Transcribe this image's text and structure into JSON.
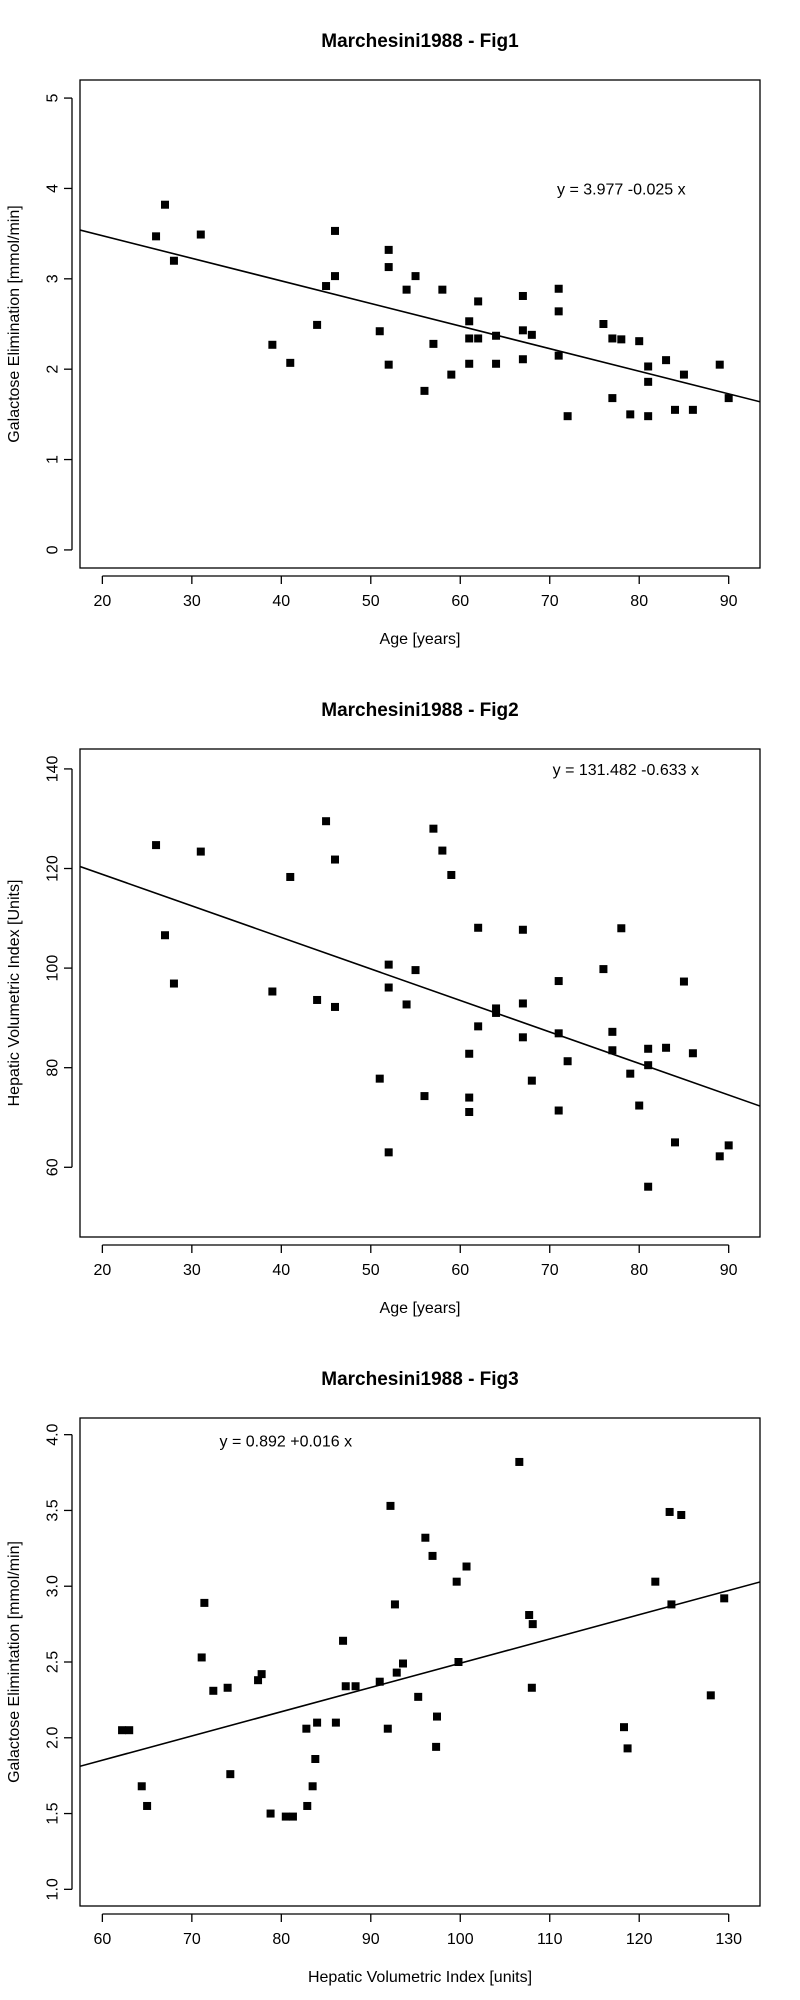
{
  "chart_data": [
    {
      "type": "scatter",
      "title": "Marchesini1988 - Fig1",
      "xlabel": "Age [years]",
      "ylabel": "Galactose Elimination [mmol/min]",
      "xlim": [
        17.5,
        93.5
      ],
      "ylim": [
        -0.2,
        5.2
      ],
      "xticks": [
        20,
        30,
        40,
        50,
        60,
        70,
        80,
        90
      ],
      "yticks": [
        0,
        1,
        2,
        3,
        4,
        5
      ],
      "fit": {
        "intercept": 3.977,
        "slope": -0.025,
        "label": "y = 3.977 -0.025 x"
      },
      "label_pos": [
        78,
        4.0
      ],
      "points": [
        [
          26,
          3.47
        ],
        [
          27,
          3.82
        ],
        [
          28,
          3.2
        ],
        [
          31,
          3.49
        ],
        [
          39,
          2.27
        ],
        [
          41,
          2.07
        ],
        [
          44,
          2.49
        ],
        [
          45,
          2.92
        ],
        [
          46,
          3.53
        ],
        [
          46,
          3.03
        ],
        [
          51,
          2.42
        ],
        [
          52,
          3.32
        ],
        [
          52,
          3.13
        ],
        [
          52,
          2.05
        ],
        [
          54,
          2.88
        ],
        [
          55,
          3.03
        ],
        [
          56,
          1.76
        ],
        [
          57,
          2.28
        ],
        [
          58,
          2.88
        ],
        [
          59,
          1.94
        ],
        [
          61,
          2.53
        ],
        [
          61,
          2.34
        ],
        [
          61,
          2.06
        ],
        [
          62,
          2.75
        ],
        [
          62,
          2.34
        ],
        [
          64,
          2.37
        ],
        [
          64,
          2.06
        ],
        [
          67,
          2.81
        ],
        [
          67,
          2.43
        ],
        [
          67,
          2.11
        ],
        [
          68,
          2.38
        ],
        [
          71,
          2.89
        ],
        [
          71,
          2.64
        ],
        [
          71,
          2.15
        ],
        [
          72,
          1.48
        ],
        [
          76,
          2.5
        ],
        [
          77,
          2.34
        ],
        [
          77,
          1.68
        ],
        [
          78,
          2.33
        ],
        [
          79,
          1.5
        ],
        [
          80,
          2.31
        ],
        [
          81,
          2.03
        ],
        [
          81,
          1.86
        ],
        [
          81,
          1.48
        ],
        [
          83,
          2.1
        ],
        [
          84,
          1.55
        ],
        [
          85,
          1.94
        ],
        [
          86,
          1.55
        ],
        [
          89,
          2.05
        ],
        [
          90,
          1.68
        ]
      ]
    },
    {
      "type": "scatter",
      "title": "Marchesini1988 - Fig2",
      "xlabel": "Age [years]",
      "ylabel": "Hepatic Volumetric Index [Units]",
      "xlim": [
        17.5,
        93.5
      ],
      "ylim": [
        46,
        144
      ],
      "xticks": [
        20,
        30,
        40,
        50,
        60,
        70,
        80,
        90
      ],
      "yticks": [
        60,
        80,
        100,
        120,
        140
      ],
      "fit": {
        "intercept": 131.482,
        "slope": -0.633,
        "label": "y = 131.482 -0.633 x"
      },
      "label_pos": [
        78.5,
        140
      ],
      "points": [
        [
          26,
          124.7
        ],
        [
          27,
          106.6
        ],
        [
          28,
          96.9
        ],
        [
          31,
          123.4
        ],
        [
          39,
          95.3
        ],
        [
          41,
          118.3
        ],
        [
          44,
          93.6
        ],
        [
          45,
          129.5
        ],
        [
          46,
          121.8
        ],
        [
          46,
          92.2
        ],
        [
          51,
          77.8
        ],
        [
          52,
          100.7
        ],
        [
          52,
          96.1
        ],
        [
          52,
          63.0
        ],
        [
          54,
          92.7
        ],
        [
          55,
          99.6
        ],
        [
          56,
          74.3
        ],
        [
          57,
          128.0
        ],
        [
          58,
          123.6
        ],
        [
          59,
          118.7
        ],
        [
          61,
          82.8
        ],
        [
          61,
          74.0
        ],
        [
          61,
          71.1
        ],
        [
          62,
          108.1
        ],
        [
          62,
          88.3
        ],
        [
          64,
          91.9
        ],
        [
          64,
          91.0
        ],
        [
          67,
          107.7
        ],
        [
          67,
          92.9
        ],
        [
          67,
          86.1
        ],
        [
          68,
          77.4
        ],
        [
          71,
          97.4
        ],
        [
          71,
          86.9
        ],
        [
          71,
          71.4
        ],
        [
          72,
          81.3
        ],
        [
          76,
          99.8
        ],
        [
          77,
          87.2
        ],
        [
          77,
          83.5
        ],
        [
          78,
          108.0
        ],
        [
          79,
          78.8
        ],
        [
          80,
          72.4
        ],
        [
          81,
          83.8
        ],
        [
          81,
          80.5
        ],
        [
          81,
          56.1
        ],
        [
          83,
          84.0
        ],
        [
          84,
          65.0
        ],
        [
          85,
          97.3
        ],
        [
          86,
          82.9
        ],
        [
          89,
          62.2
        ],
        [
          90,
          64.4
        ]
      ]
    },
    {
      "type": "scatter",
      "title": "Marchesini1988 - Fig3",
      "xlabel": "Hepatic Volumetric Index [units]",
      "ylabel": "Galactose Elimintation [mmol/min]",
      "xlim": [
        57.5,
        133.5
      ],
      "ylim": [
        0.89,
        4.11
      ],
      "xticks": [
        60,
        70,
        80,
        90,
        100,
        110,
        120,
        130
      ],
      "yticks": [
        1.0,
        1.5,
        2.0,
        2.5,
        3.0,
        3.5,
        4.0
      ],
      "fit": {
        "intercept": 0.892,
        "slope": 0.016,
        "label": "y = 0.892 +0.016 x"
      },
      "label_pos": [
        80.5,
        3.96
      ],
      "points": [
        [
          62.2,
          2.05
        ],
        [
          63.0,
          2.05
        ],
        [
          64.4,
          1.68
        ],
        [
          65.0,
          1.55
        ],
        [
          71.1,
          2.53
        ],
        [
          71.4,
          2.89
        ],
        [
          72.4,
          2.31
        ],
        [
          74.0,
          2.33
        ],
        [
          74.3,
          1.76
        ],
        [
          77.4,
          2.38
        ],
        [
          77.8,
          2.42
        ],
        [
          78.8,
          1.5
        ],
        [
          80.5,
          1.48
        ],
        [
          81.3,
          1.48
        ],
        [
          82.8,
          2.06
        ],
        [
          82.9,
          1.55
        ],
        [
          83.5,
          1.68
        ],
        [
          83.8,
          1.86
        ],
        [
          84.0,
          2.1
        ],
        [
          86.1,
          2.1
        ],
        [
          86.9,
          2.64
        ],
        [
          87.2,
          2.34
        ],
        [
          88.3,
          2.34
        ],
        [
          91.0,
          2.37
        ],
        [
          91.9,
          2.06
        ],
        [
          92.2,
          3.53
        ],
        [
          92.7,
          2.88
        ],
        [
          92.9,
          2.43
        ],
        [
          93.6,
          2.49
        ],
        [
          95.3,
          2.27
        ],
        [
          96.1,
          3.32
        ],
        [
          96.9,
          3.2
        ],
        [
          97.3,
          1.94
        ],
        [
          97.4,
          2.14
        ],
        [
          99.6,
          3.03
        ],
        [
          99.8,
          2.5
        ],
        [
          100.7,
          3.13
        ],
        [
          106.6,
          3.82
        ],
        [
          107.7,
          2.81
        ],
        [
          108.0,
          2.33
        ],
        [
          108.1,
          2.75
        ],
        [
          118.3,
          2.07
        ],
        [
          118.7,
          1.93
        ],
        [
          121.8,
          3.03
        ],
        [
          123.4,
          3.49
        ],
        [
          123.6,
          2.88
        ],
        [
          124.7,
          3.47
        ],
        [
          128.0,
          2.28
        ],
        [
          129.5,
          2.92
        ]
      ]
    }
  ]
}
